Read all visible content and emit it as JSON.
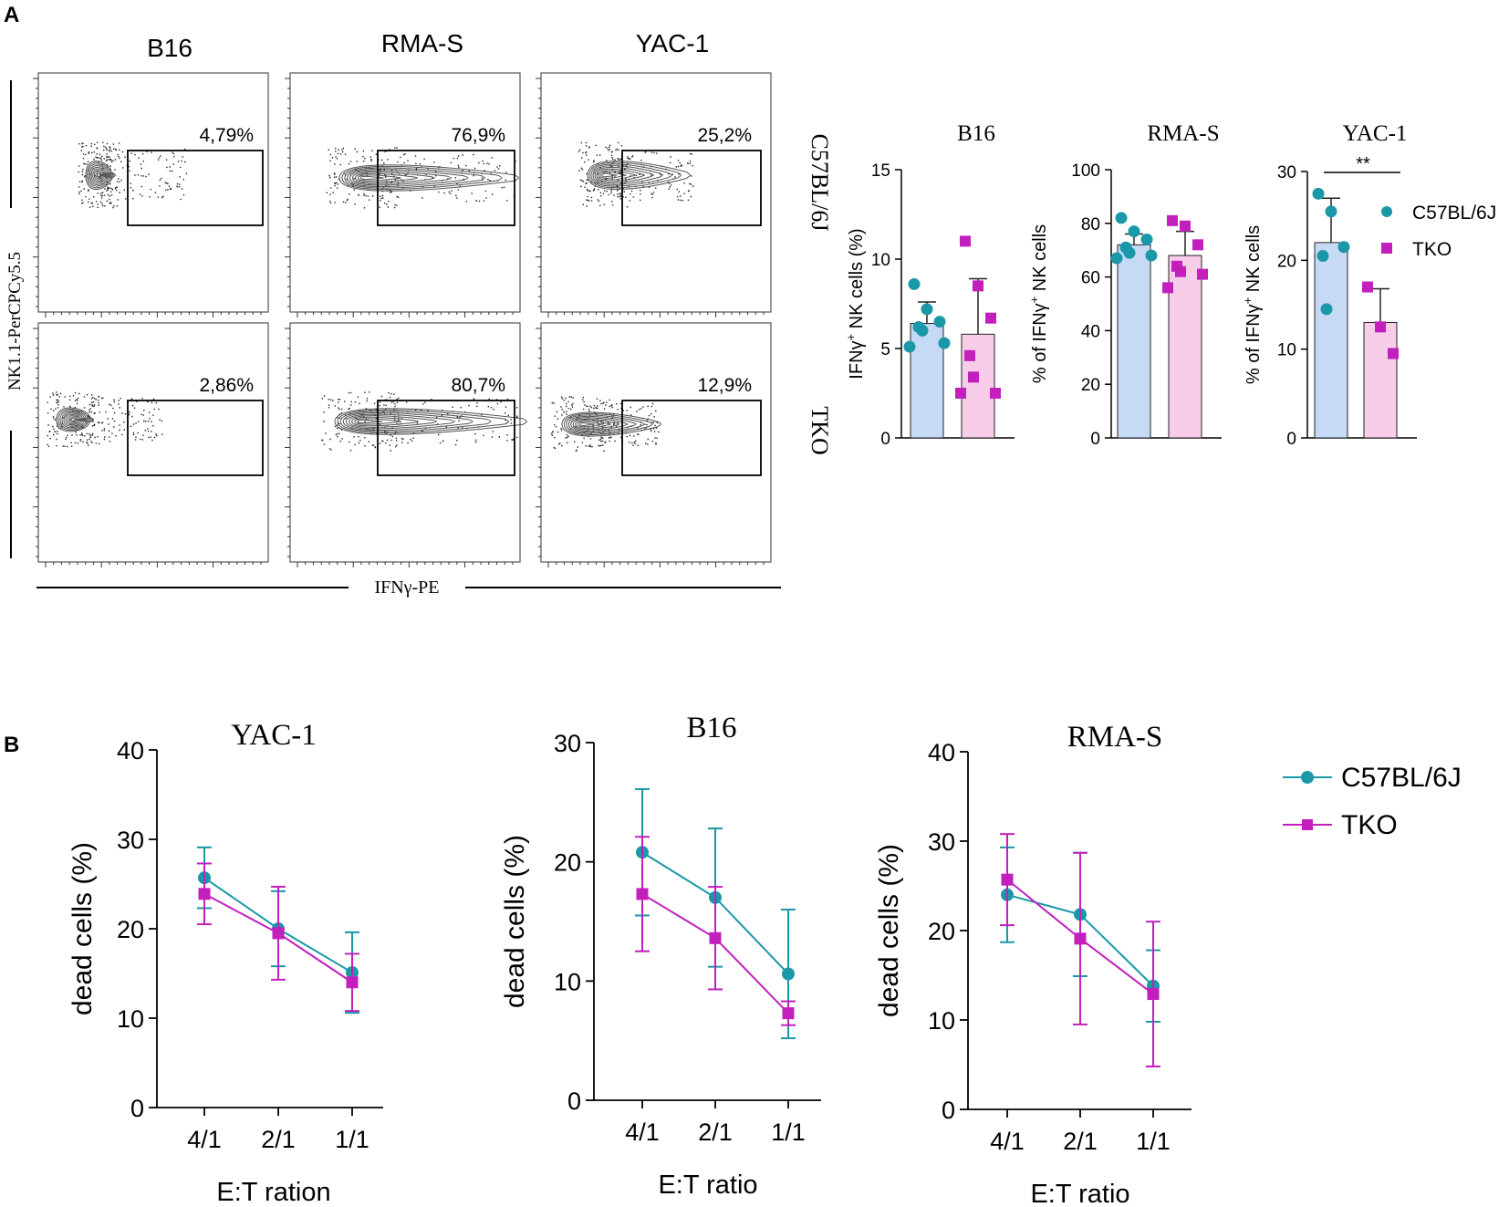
{
  "panel_labels": {
    "a": "A",
    "b": "B"
  },
  "flow": {
    "columns": [
      "B16",
      "RMA-S",
      "YAC-1"
    ],
    "rows": [
      "C57BL/6J",
      "TKO"
    ],
    "y_axis_label": "NK1.1-PerCPCy5.5",
    "x_axis_label": "IFNγ-PE",
    "gates": [
      [
        "4,79%",
        "76,9%",
        "25,2%"
      ],
      [
        "2,86%",
        "80,7%",
        "12,9%"
      ]
    ]
  },
  "chart_data": [
    {
      "id": "bar-b16",
      "type": "bar",
      "title": "B16",
      "ylabel": "IFNγ+ NK cells (%)",
      "ylim": [
        0,
        15
      ],
      "yticks": [
        0,
        5,
        10,
        15
      ],
      "series": [
        {
          "name": "C57BL/6J",
          "mean": 6.4,
          "sd": 1.2,
          "points": [
            8.6,
            7.2,
            6.5,
            6.2,
            6.0,
            5.3,
            5.1
          ]
        },
        {
          "name": "TKO",
          "mean": 5.8,
          "sd": 3.1,
          "points": [
            11.0,
            8.5,
            6.7,
            4.6,
            3.4,
            2.5,
            2.5
          ]
        }
      ]
    },
    {
      "id": "bar-rmas",
      "type": "bar",
      "title": "RMA-S",
      "ylabel": "% of IFNγ+ NK cells",
      "ylim": [
        0,
        100
      ],
      "yticks": [
        0,
        20,
        40,
        60,
        80,
        100
      ],
      "series": [
        {
          "name": "C57BL/6J",
          "mean": 72,
          "sd": 4,
          "points": [
            82,
            77,
            74,
            71,
            69,
            68,
            67
          ]
        },
        {
          "name": "TKO",
          "mean": 68,
          "sd": 9,
          "points": [
            81,
            79,
            72,
            64,
            62,
            61,
            56
          ]
        }
      ]
    },
    {
      "id": "bar-yac1",
      "type": "bar",
      "title": "YAC-1",
      "ylabel": "% of IFNγ+ NK cells",
      "ylim": [
        0,
        30
      ],
      "yticks": [
        0,
        10,
        20,
        30
      ],
      "significance": "**",
      "legend": [
        "C57BL/6J",
        "TKO"
      ],
      "series": [
        {
          "name": "C57BL/6J",
          "mean": 22,
          "sd": 5,
          "points": [
            27.5,
            25.5,
            21.5,
            20.5,
            14.5
          ]
        },
        {
          "name": "TKO",
          "mean": 13,
          "sd": 3.8,
          "points": [
            17,
            12.5,
            9.5
          ]
        }
      ]
    },
    {
      "id": "line-yac1",
      "type": "line",
      "title": "YAC-1",
      "xlabel": "E:T ration",
      "ylabel": "dead cells (%)",
      "categories": [
        "4/1",
        "2/1",
        "1/1"
      ],
      "ylim": [
        0,
        40
      ],
      "yticks": [
        0,
        10,
        20,
        30,
        40
      ],
      "series": [
        {
          "name": "C57BL/6J",
          "values": [
            25.7,
            20.0,
            15.1
          ],
          "err": [
            3.4,
            4.2,
            4.5
          ]
        },
        {
          "name": "TKO",
          "values": [
            23.9,
            19.5,
            14.0
          ],
          "err": [
            3.4,
            5.2,
            3.2
          ]
        }
      ]
    },
    {
      "id": "line-b16",
      "type": "line",
      "title": "B16",
      "xlabel": "E:T ratio",
      "ylabel": "dead cells (%)",
      "categories": [
        "4/1",
        "2/1",
        "1/1"
      ],
      "ylim": [
        0,
        30
      ],
      "yticks": [
        0,
        10,
        20,
        30
      ],
      "series": [
        {
          "name": "C57BL/6J",
          "values": [
            20.8,
            17.0,
            10.6
          ],
          "err": [
            5.3,
            5.8,
            5.4
          ]
        },
        {
          "name": "TKO",
          "values": [
            17.3,
            13.6,
            7.3
          ],
          "err": [
            4.8,
            4.3,
            1.0
          ]
        }
      ]
    },
    {
      "id": "line-rmas",
      "type": "line",
      "title": "RMA-S",
      "xlabel": "E:T ratio",
      "ylabel": "dead cells (%)",
      "categories": [
        "4/1",
        "2/1",
        "1/1"
      ],
      "ylim": [
        0,
        40
      ],
      "yticks": [
        0,
        10,
        20,
        30,
        40
      ],
      "series": [
        {
          "name": "C57BL/6J",
          "values": [
            24.0,
            21.8,
            13.8
          ],
          "err": [
            5.3,
            6.9,
            4.0
          ]
        },
        {
          "name": "TKO",
          "values": [
            25.7,
            19.1,
            12.9
          ],
          "err": [
            5.1,
            9.6,
            8.1
          ]
        }
      ]
    }
  ],
  "legend_b": [
    "C57BL/6J",
    "TKO"
  ],
  "colors": {
    "wt": "#1a98a8",
    "tko": "#c21fbd",
    "wt_fill": "#c6daf5",
    "tko_fill": "#f7cdea"
  }
}
